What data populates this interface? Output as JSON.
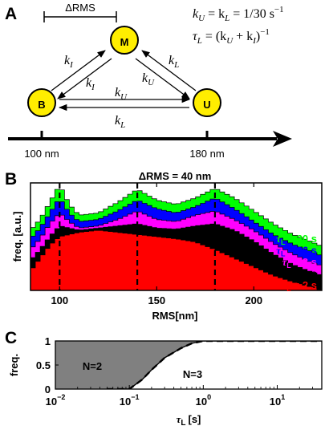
{
  "panel_a": {
    "letter": "A",
    "delta_rms_label": "ΔRMS",
    "equations": {
      "line1": {
        "lhs": "k",
        "sub1": "U",
        "mid": " = k",
        "sub2": "L",
        "rhs": " = 1/30 s",
        "sup": "−1"
      },
      "line2": {
        "t": "τ",
        "sub1": "L",
        "eq": " = (k",
        "sub2": "U",
        "plus": " + k",
        "sub3": "I",
        "close": ")",
        "sup": "−1"
      }
    },
    "states": [
      "M",
      "B",
      "U"
    ],
    "rates": {
      "b_to_m": {
        "k": "k",
        "sub": "I"
      },
      "m_to_b": {
        "k": "k",
        "sub": "I"
      },
      "u_to_m": {
        "k": "k",
        "sub": "L"
      },
      "m_to_u": {
        "k": "k",
        "sub": "U"
      },
      "b_to_u": {
        "k": "k",
        "sub": "U"
      },
      "u_to_b": {
        "k": "k",
        "sub": "L"
      }
    },
    "axis_ticks": [
      "100 nm",
      "180 nm"
    ],
    "colors": {
      "state_fill": "#ffee00",
      "line": "#000000"
    }
  },
  "chart_data": [
    {
      "panel": "B",
      "type": "area",
      "title": "ΔRMS = 40 nm",
      "xlabel": "RMS[nm]",
      "ylabel": "freq. [a.u.]",
      "xlim": [
        85,
        235
      ],
      "xticks": [
        100,
        150,
        200
      ],
      "ylim": [
        0,
        1
      ],
      "dashed_lines_x": [
        100,
        140,
        180
      ],
      "x": [
        85,
        90,
        95,
        100,
        105,
        110,
        120,
        130,
        140,
        150,
        160,
        170,
        180,
        190,
        200,
        210,
        220,
        230,
        235
      ],
      "series": [
        {
          "name": "2 s",
          "color": "#ff0000",
          "values": [
            0.18,
            0.3,
            0.42,
            0.5,
            0.52,
            0.54,
            0.56,
            0.54,
            0.52,
            0.5,
            0.48,
            0.45,
            0.38,
            0.3,
            0.22,
            0.14,
            0.08,
            0.03,
            0.0
          ]
        },
        {
          "name": "4 s",
          "color": "#000000",
          "values": [
            0.28,
            0.38,
            0.5,
            0.6,
            0.58,
            0.56,
            0.58,
            0.6,
            0.62,
            0.58,
            0.57,
            0.6,
            0.62,
            0.56,
            0.46,
            0.34,
            0.24,
            0.17,
            0.14
          ]
        },
        {
          "name": "8 s",
          "color": "#ff00ff",
          "values": [
            0.38,
            0.48,
            0.62,
            0.72,
            0.64,
            0.58,
            0.6,
            0.66,
            0.74,
            0.66,
            0.64,
            0.7,
            0.74,
            0.66,
            0.56,
            0.44,
            0.34,
            0.26,
            0.23
          ]
        },
        {
          "name": "16 s",
          "color": "#0000ff",
          "values": [
            0.48,
            0.58,
            0.72,
            0.86,
            0.72,
            0.64,
            0.66,
            0.74,
            0.84,
            0.76,
            0.72,
            0.78,
            0.86,
            0.76,
            0.64,
            0.52,
            0.43,
            0.36,
            0.32
          ]
        },
        {
          "name": "30 s",
          "color": "#00ff00",
          "values": [
            0.56,
            0.66,
            0.82,
            0.98,
            0.8,
            0.7,
            0.72,
            0.82,
            0.94,
            0.84,
            0.8,
            0.86,
            0.95,
            0.86,
            0.74,
            0.62,
            0.52,
            0.45,
            0.41
          ]
        }
      ],
      "legend_prefix": "τ",
      "legend_sub": "L",
      "legend_entries": [
        "= 30 s",
        "= 16 s",
        "= 8 s",
        "= 4 s",
        "= 2 s"
      ],
      "legend_colors": [
        "#00ff00",
        "#0000ff",
        "#ff00ff",
        "#000000",
        "#ff0000"
      ],
      "legend_placement": "right, stacked"
    },
    {
      "panel": "C",
      "type": "area",
      "xscale": "log",
      "xlabel_base": "τ",
      "xlabel_sub": "L",
      "xlabel_unit": "[s]",
      "ylabel": "freq.",
      "xlim": [
        0.01,
        40
      ],
      "ylim": [
        0,
        1
      ],
      "xticks": [
        0.01,
        0.1,
        1,
        10
      ],
      "xtick_labels": [
        {
          "base": "10",
          "exp": "−2"
        },
        {
          "base": "10",
          "exp": "−1"
        },
        {
          "base": "10",
          "exp": "0"
        },
        {
          "base": "10",
          "exp": "1"
        }
      ],
      "yticks": [
        0,
        0.5,
        1
      ],
      "ytick_labels": [
        "0",
        "0.5",
        "1"
      ],
      "x": [
        0.07,
        0.1,
        0.15,
        0.2,
        0.3,
        0.5,
        0.7,
        1.0,
        1.5,
        40
      ],
      "y": [
        0.0,
        0.0,
        0.2,
        0.4,
        0.65,
        0.85,
        0.95,
        1.0,
        1.0,
        1.0
      ],
      "region_labels": [
        "N=2",
        "N=3"
      ],
      "region_color": "#808080"
    }
  ]
}
